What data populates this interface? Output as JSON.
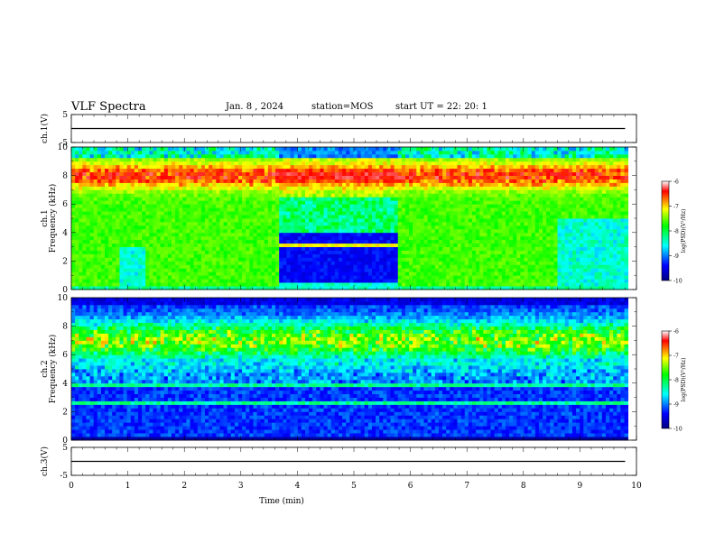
{
  "header": {
    "title": "VLF Spectra",
    "date": "Jan. 8 , 2024",
    "station": "station=MOS",
    "start": "start UT =  22: 20: 1"
  },
  "chart_data": [
    {
      "type": "line",
      "title": "",
      "ylabel": "ch.1(V)",
      "ylim": [
        -5,
        5
      ],
      "yticks": [
        "5",
        "-5"
      ],
      "xlim": [
        0,
        10
      ],
      "series": [
        {
          "x": [
            0,
            9.8
          ],
          "y": [
            0,
            0
          ]
        }
      ]
    },
    {
      "type": "heatmap",
      "ylabel_lines": [
        "ch.1",
        "Frequency (kHz)"
      ],
      "ylim": [
        0,
        10
      ],
      "yticks": [
        "0",
        "2",
        "4",
        "6",
        "8",
        "10"
      ],
      "xlim": [
        0,
        10
      ],
      "data_end_min": 9.85,
      "colorbar": {
        "label": "log(PSD)(V²/Hz)",
        "range": [
          -10,
          -6
        ],
        "ticks": [
          "-6",
          "-7",
          "-8",
          "-9",
          "-10"
        ]
      },
      "colormap": [
        "#000080",
        "#0000ff",
        "#00ffff",
        "#00ff00",
        "#ffff00",
        "#ff0000",
        "#ffffff"
      ],
      "notes": "Noise band near 7-9 kHz; quiet interval between 3.7 and 5.8 min with emission mostly 4-9 kHz; broadband green below ~6 kHz elsewhere."
    },
    {
      "type": "heatmap",
      "ylabel_lines": [
        "ch.2",
        "Frequency (kHz)"
      ],
      "ylim": [
        0,
        10
      ],
      "yticks": [
        "0",
        "2",
        "4",
        "6",
        "8",
        "10"
      ],
      "xlim": [
        0,
        10
      ],
      "data_end_min": 9.85,
      "colorbar": {
        "label": "log(PSD)(V²/Hz)",
        "range": [
          -10,
          -6
        ],
        "ticks": [
          "-6",
          "-7",
          "-8",
          "-9",
          "-10"
        ]
      },
      "colormap": [
        "#000080",
        "#0000ff",
        "#00ffff",
        "#00ff00",
        "#ffff00",
        "#ff0000",
        "#ffffff"
      ],
      "notes": "Main emission band 5-9 kHz; weaker blue below 5 kHz with horizontal lines."
    },
    {
      "type": "line",
      "ylabel": "ch.3(V)",
      "ylim": [
        -5,
        5
      ],
      "yticks": [
        "5",
        "-5"
      ],
      "xlim": [
        0,
        10
      ],
      "xlabel": "Time  (min)",
      "xticks": [
        "0",
        "1",
        "2",
        "3",
        "4",
        "5",
        "6",
        "7",
        "8",
        "9",
        "10"
      ],
      "series": [
        {
          "x": [
            0,
            9.8
          ],
          "y": [
            0,
            0
          ]
        }
      ]
    }
  ]
}
